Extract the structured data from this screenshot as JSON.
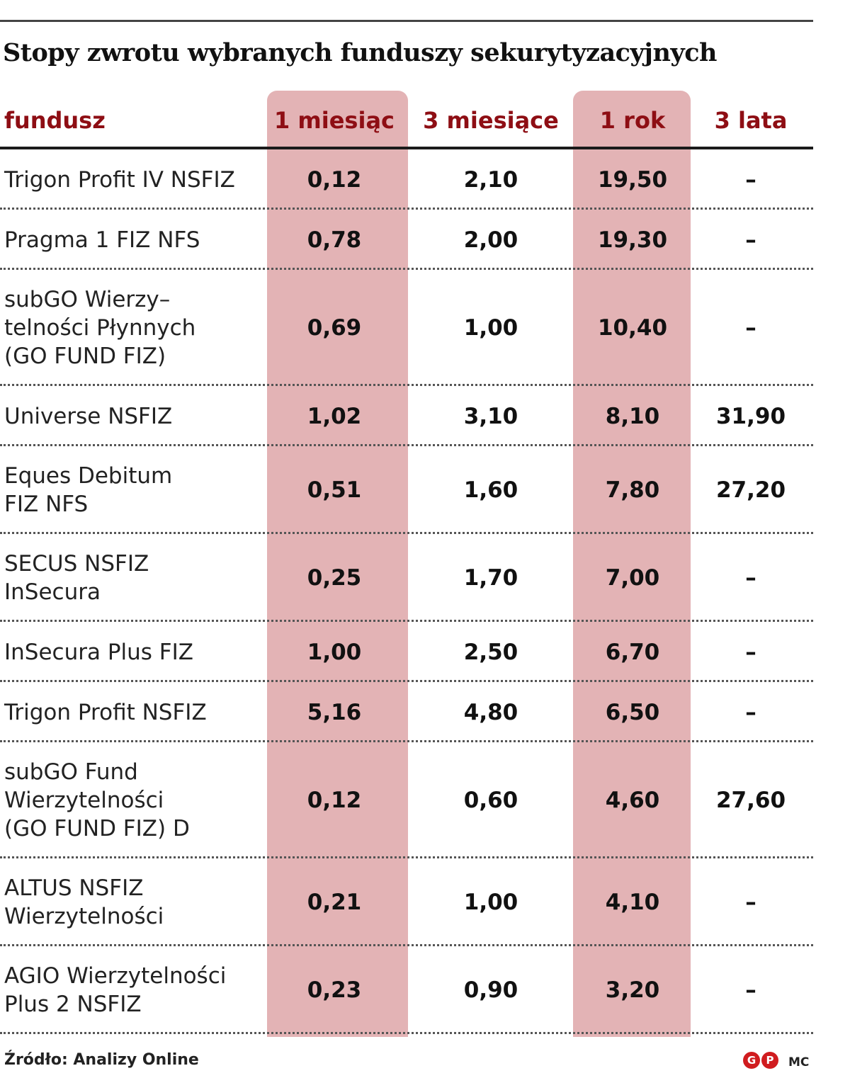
{
  "title": "Stopy zwrotu wybranych funduszy sekurytyzacyjnych",
  "chart_data": {
    "type": "table",
    "columns": [
      "fundusz",
      "1 miesiąc",
      "3 miesiące",
      "1 rok",
      "3 lata"
    ],
    "highlighted_columns": [
      "1 miesiąc",
      "1 rok"
    ],
    "highlight_color": "#e3b3b5",
    "header_color": "#8e0e14",
    "rows": [
      {
        "name": "Trigon Profit IV NSFIZ",
        "m1": "0,12",
        "m3": "2,10",
        "y1": "19,50",
        "y3": "–"
      },
      {
        "name": "Pragma 1 FIZ NFS",
        "m1": "0,78",
        "m3": "2,00",
        "y1": "19,30",
        "y3": "–"
      },
      {
        "name": "subGO Wierzy–\ntelności Płynnych\n(GO FUND FIZ)",
        "m1": "0,69",
        "m3": "1,00",
        "y1": "10,40",
        "y3": "–"
      },
      {
        "name": "Universe NSFIZ",
        "m1": "1,02",
        "m3": "3,10",
        "y1": "8,10",
        "y3": "31,90"
      },
      {
        "name": "Eques Debitum\nFIZ NFS",
        "m1": "0,51",
        "m3": "1,60",
        "y1": "7,80",
        "y3": "27,20"
      },
      {
        "name": "SECUS NSFIZ\nInSecura",
        "m1": "0,25",
        "m3": "1,70",
        "y1": "7,00",
        "y3": "–"
      },
      {
        "name": "InSecura Plus FIZ",
        "m1": "1,00",
        "m3": "2,50",
        "y1": "6,70",
        "y3": "–"
      },
      {
        "name": "Trigon Profit NSFIZ",
        "m1": "5,16",
        "m3": "4,80",
        "y1": "6,50",
        "y3": "–"
      },
      {
        "name": "subGO Fund\nWierzytelności\n(GO FUND FIZ) D",
        "m1": "0,12",
        "m3": "0,60",
        "y1": "4,60",
        "y3": "27,60"
      },
      {
        "name": "ALTUS NSFIZ\nWierzytelności",
        "m1": "0,21",
        "m3": "1,00",
        "y1": "4,10",
        "y3": "–"
      },
      {
        "name": "AGIO Wierzytelności\nPlus 2 NSFIZ",
        "m1": "0,23",
        "m3": "0,90",
        "y1": "3,20",
        "y3": "–"
      }
    ]
  },
  "footer": {
    "source": "Źródło: Analizy Online",
    "logo_letters": [
      "G",
      "P"
    ],
    "credit": "MC"
  }
}
